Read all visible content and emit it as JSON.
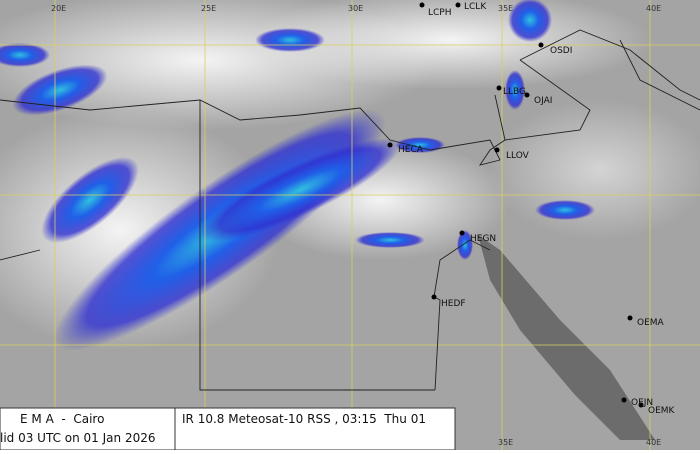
{
  "map": {
    "lon_top": [
      "20E",
      "25E",
      "30E",
      "35E",
      "40E"
    ],
    "lon_bottom": [
      "35E",
      "40E"
    ],
    "stations": [
      "LCPH",
      "LCLK",
      "OSDI",
      "OJAI",
      "LLBG",
      "HECA",
      "LLOV",
      "HEGN",
      "HEDF",
      "OEMA",
      "OEJN",
      "OEMK"
    ]
  },
  "caption": {
    "agency": "E M A  -  Cairo",
    "valid": "lid 03 UTC on 01 Jan 2026",
    "product": "IR 10.8 Meteosat-10 RSS , 03:15  Thu 01"
  }
}
